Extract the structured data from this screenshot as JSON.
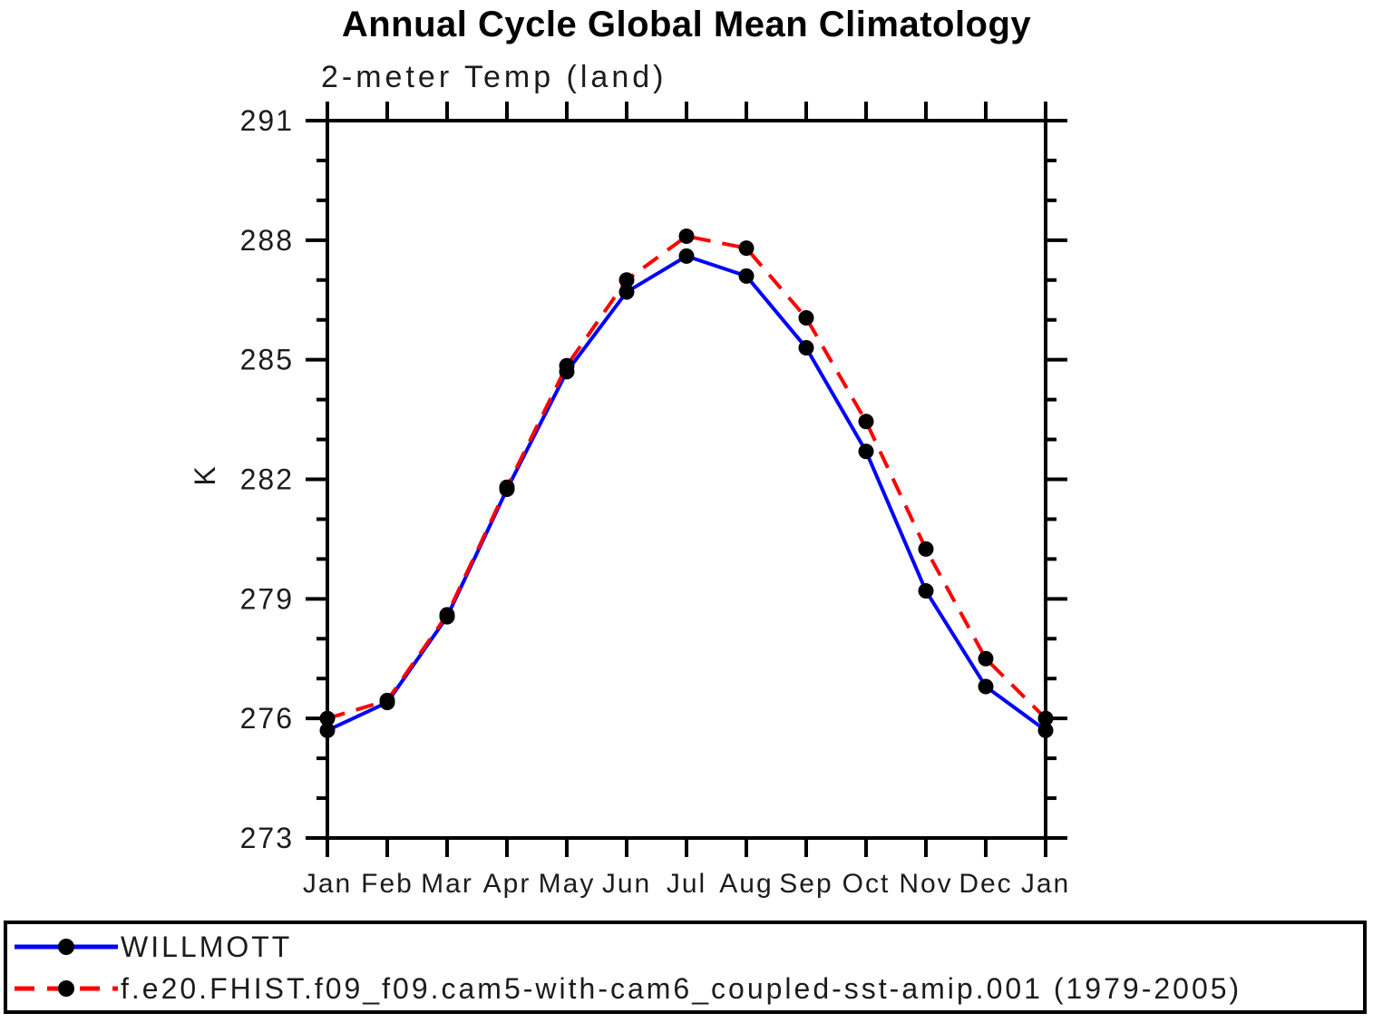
{
  "title": "Annual Cycle Global Mean Climatology",
  "chart_data": {
    "type": "line",
    "title": "Annual Cycle Global Mean Climatology",
    "subtitle": "2-meter Temp (land)",
    "xlabel": "",
    "ylabel": "K",
    "categories": [
      "Jan",
      "Feb",
      "Mar",
      "Apr",
      "May",
      "Jun",
      "Jul",
      "Aug",
      "Sep",
      "Oct",
      "Nov",
      "Dec",
      "Jan"
    ],
    "ylim": [
      273,
      291
    ],
    "yticks_major": [
      273,
      276,
      279,
      282,
      285,
      288,
      291
    ],
    "ytick_minor_step": 1,
    "grid": false,
    "legend_position": "bottom-left-box",
    "axis_color": "#000000",
    "series": [
      {
        "name": "WILLMOTT",
        "color": "#0000ff",
        "style": "solid",
        "marker": "filled-circle",
        "marker_color": "#000000",
        "values": [
          275.7,
          276.4,
          278.55,
          281.75,
          284.7,
          286.7,
          287.6,
          287.1,
          285.3,
          282.7,
          279.2,
          276.8,
          275.7
        ]
      },
      {
        "name": "f.e20.FHIST.f09_f09.cam5-with-cam6_coupled-sst-amip.001 (1979-2005)",
        "color": "#ff0000",
        "style": "dashed",
        "marker": "filled-circle",
        "marker_color": "#000000",
        "values": [
          276.0,
          276.45,
          278.6,
          281.8,
          284.85,
          287.0,
          288.1,
          287.8,
          286.05,
          283.45,
          280.25,
          277.5,
          276.0
        ]
      }
    ]
  }
}
